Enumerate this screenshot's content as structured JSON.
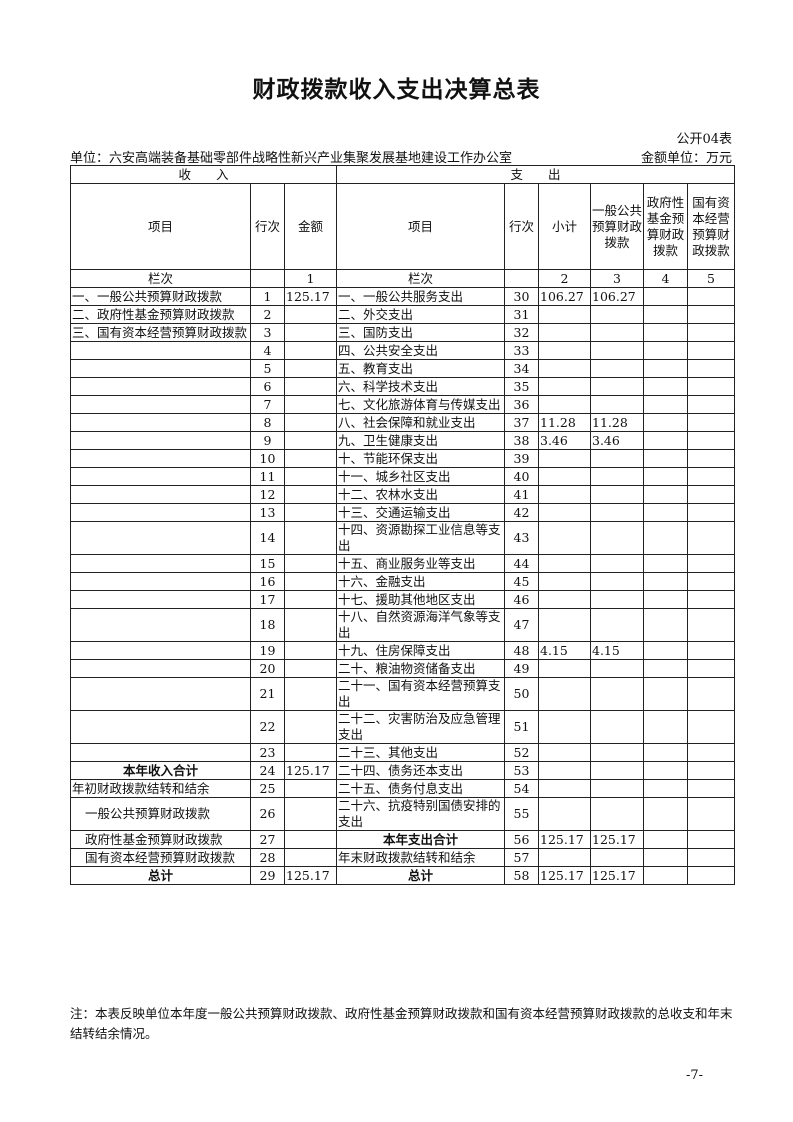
{
  "title": "财政拨款收入支出决算总表",
  "form_no": "公开04表",
  "unit": "单位：六安高端装备基础零部件战略性新兴产业集聚发展基地建设工作办公室",
  "money_unit": "金额单位：万元",
  "header": {
    "income": "收　　入",
    "expense": "支　　出",
    "item": "项目",
    "line": "行次",
    "amount": "金额",
    "subtotal": "小计",
    "general": "一般公共预算财政拨款",
    "gov_fund": "政府性基金预算财政拨款",
    "state_capital": "国有资本经营预算财政拨款",
    "col_label": "栏次",
    "col_nums": [
      "1",
      "2",
      "3",
      "4",
      "5"
    ]
  },
  "rows": [
    [
      "一、一般公共预算财政拨款",
      "1",
      "125.17",
      "一、一般公共服务支出",
      "30",
      "106.27",
      "106.27",
      "",
      ""
    ],
    [
      "二、政府性基金预算财政拨款",
      "2",
      "",
      "二、外交支出",
      "31",
      "",
      "",
      "",
      ""
    ],
    [
      "三、国有资本经营预算财政拨款",
      "3",
      "",
      "三、国防支出",
      "32",
      "",
      "",
      "",
      ""
    ],
    [
      "",
      "4",
      "",
      "四、公共安全支出",
      "33",
      "",
      "",
      "",
      ""
    ],
    [
      "",
      "5",
      "",
      "五、教育支出",
      "34",
      "",
      "",
      "",
      ""
    ],
    [
      "",
      "6",
      "",
      "六、科学技术支出",
      "35",
      "",
      "",
      "",
      ""
    ],
    [
      "",
      "7",
      "",
      "七、文化旅游体育与传媒支出",
      "36",
      "",
      "",
      "",
      ""
    ],
    [
      "",
      "8",
      "",
      "八、社会保障和就业支出",
      "37",
      "11.28",
      "11.28",
      "",
      ""
    ],
    [
      "",
      "9",
      "",
      "九、卫生健康支出",
      "38",
      "3.46",
      "3.46",
      "",
      ""
    ],
    [
      "",
      "10",
      "",
      "十、节能环保支出",
      "39",
      "",
      "",
      "",
      ""
    ],
    [
      "",
      "11",
      "",
      "十一、城乡社区支出",
      "40",
      "",
      "",
      "",
      ""
    ],
    [
      "",
      "12",
      "",
      "十二、农林水支出",
      "41",
      "",
      "",
      "",
      ""
    ],
    [
      "",
      "13",
      "",
      "十三、交通运输支出",
      "42",
      "",
      "",
      "",
      ""
    ],
    [
      "",
      "14",
      "",
      "十四、资源勘探工业信息等支出",
      "43",
      "",
      "",
      "",
      ""
    ],
    [
      "",
      "15",
      "",
      "十五、商业服务业等支出",
      "44",
      "",
      "",
      "",
      ""
    ],
    [
      "",
      "16",
      "",
      "十六、金融支出",
      "45",
      "",
      "",
      "",
      ""
    ],
    [
      "",
      "17",
      "",
      "十七、援助其他地区支出",
      "46",
      "",
      "",
      "",
      ""
    ],
    [
      "",
      "18",
      "",
      "十八、自然资源海洋气象等支出",
      "47",
      "",
      "",
      "",
      ""
    ],
    [
      "",
      "19",
      "",
      "十九、住房保障支出",
      "48",
      "4.15",
      "4.15",
      "",
      ""
    ],
    [
      "",
      "20",
      "",
      "二十、粮油物资储备支出",
      "49",
      "",
      "",
      "",
      ""
    ],
    [
      "",
      "21",
      "",
      "二十一、国有资本经营预算支出",
      "50",
      "",
      "",
      "",
      ""
    ],
    [
      "",
      "22",
      "",
      "二十二、灾害防治及应急管理支出",
      "51",
      "",
      "",
      "",
      ""
    ],
    [
      "",
      "23",
      "",
      "二十三、其他支出",
      "52",
      "",
      "",
      "",
      ""
    ],
    [
      "本年收入合计",
      "24",
      "125.17",
      "二十四、债务还本支出",
      "53",
      "",
      "",
      "",
      ""
    ],
    [
      "年初财政拨款结转和结余",
      "25",
      "",
      "二十五、债务付息支出",
      "54",
      "",
      "",
      "",
      ""
    ],
    [
      "一般公共预算财政拨款",
      "26",
      "",
      "二十六、抗疫特别国债安排的支出",
      "55",
      "",
      "",
      "",
      ""
    ],
    [
      "政府性基金预算财政拨款",
      "27",
      "",
      "本年支出合计",
      "56",
      "125.17",
      "125.17",
      "",
      ""
    ],
    [
      "国有资本经营预算财政拨款",
      "28",
      "",
      "年末财政拨款结转和结余",
      "57",
      "",
      "",
      "",
      ""
    ],
    [
      "总计",
      "29",
      "125.17",
      "总计",
      "58",
      "125.17",
      "125.17",
      "",
      ""
    ]
  ],
  "note": "注：本表反映单位本年度一般公共预算财政拨款、政府性基金预算财政拨款和国有资本经营预算财政拨款的总收支和年末结转结余情况。",
  "page_number": "-7-"
}
